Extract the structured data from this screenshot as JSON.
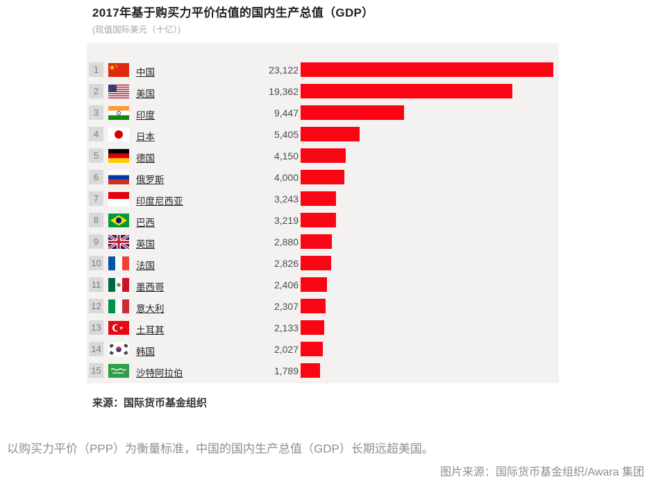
{
  "chart": {
    "title": "2017年基于购买力平价估值的国内生产总值（GDP）",
    "subtitle": "(现值国际美元（十亿）)",
    "source_label": "来源：",
    "source_text": "国际货币基金组织"
  },
  "caption": "以购买力平价（PPP）为衡量标准，中国的国内生产总值（GDP）长期远超美国。",
  "credit": "图片来源：国际货币基金组织/Awara 集团",
  "colors": {
    "bar": "#fa0514",
    "panel": "#f3f2f1",
    "rank_badge": "#d9d9d9",
    "rank_text": "#7d7d7d",
    "muted_text": "#8e8e8e"
  },
  "chart_data": {
    "type": "bar",
    "orientation": "horizontal",
    "title": "2017年基于购买力平价估值的国内生产总值（GDP）",
    "unit_note": "现值国际美元（十亿）",
    "source": "来源：国际货币基金组织",
    "xlim": [
      0,
      23122
    ],
    "grid": false,
    "legend": false,
    "bar_color": "#fa0514",
    "categories": [
      "中国",
      "美国",
      "印度",
      "日本",
      "德国",
      "俄罗斯",
      "印度尼西亚",
      "巴西",
      "英国",
      "法国",
      "墨西哥",
      "意大利",
      "土耳其",
      "韩国",
      "沙特阿拉伯"
    ],
    "values": [
      23122,
      19362,
      9447,
      5405,
      4150,
      4000,
      3243,
      3219,
      2880,
      2826,
      2406,
      2307,
      2133,
      2027,
      1789
    ],
    "rows": [
      {
        "rank": 1,
        "country": "中国",
        "flag": "cn",
        "value": 23122,
        "value_label": "23,122"
      },
      {
        "rank": 2,
        "country": "美国",
        "flag": "us",
        "value": 19362,
        "value_label": "19,362"
      },
      {
        "rank": 3,
        "country": "印度",
        "flag": "in",
        "value": 9447,
        "value_label": "9,447"
      },
      {
        "rank": 4,
        "country": "日本",
        "flag": "jp",
        "value": 5405,
        "value_label": "5,405"
      },
      {
        "rank": 5,
        "country": "德国",
        "flag": "de",
        "value": 4150,
        "value_label": "4,150"
      },
      {
        "rank": 6,
        "country": "俄罗斯",
        "flag": "ru",
        "value": 4000,
        "value_label": "4,000"
      },
      {
        "rank": 7,
        "country": "印度尼西亚",
        "flag": "id",
        "value": 3243,
        "value_label": "3,243"
      },
      {
        "rank": 8,
        "country": "巴西",
        "flag": "br",
        "value": 3219,
        "value_label": "3,219"
      },
      {
        "rank": 9,
        "country": "英国",
        "flag": "gb",
        "value": 2880,
        "value_label": "2,880"
      },
      {
        "rank": 10,
        "country": "法国",
        "flag": "fr",
        "value": 2826,
        "value_label": "2,826"
      },
      {
        "rank": 11,
        "country": "墨西哥",
        "flag": "mx",
        "value": 2406,
        "value_label": "2,406"
      },
      {
        "rank": 12,
        "country": "意大利",
        "flag": "it",
        "value": 2307,
        "value_label": "2,307"
      },
      {
        "rank": 13,
        "country": "土耳其",
        "flag": "tr",
        "value": 2133,
        "value_label": "2,133"
      },
      {
        "rank": 14,
        "country": "韩国",
        "flag": "kr",
        "value": 2027,
        "value_label": "2,027"
      },
      {
        "rank": 15,
        "country": "沙特阿拉伯",
        "flag": "sa",
        "value": 1789,
        "value_label": "1,789"
      }
    ]
  }
}
